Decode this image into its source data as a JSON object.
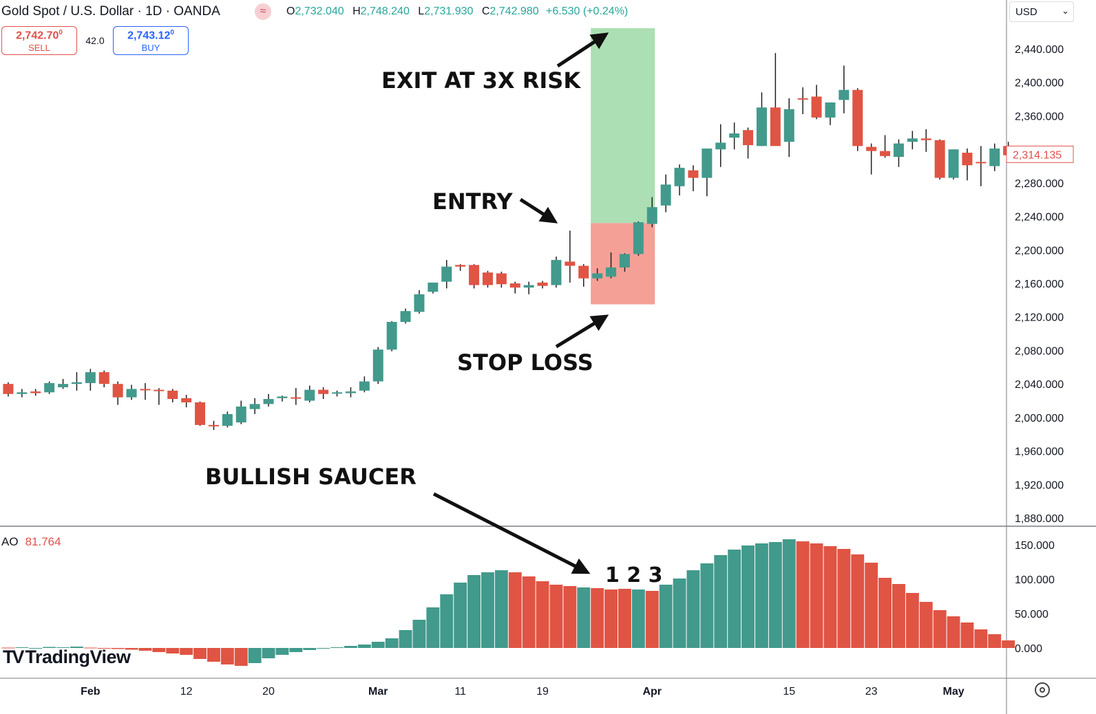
{
  "header": {
    "symbol": "Gold Spot / U.S. Dollar · 1D · OANDA",
    "feed_icon": "approx-icon",
    "ohlc": {
      "o_label": "O",
      "o": "2,732.040",
      "h_label": "H",
      "h": "2,748.240",
      "l_label": "L",
      "l": "2,731.930",
      "c_label": "C",
      "c": "2,742.980",
      "change": "+6.530 (+0.24%)"
    }
  },
  "trade": {
    "sell_price": "2,742.70",
    "sell_price_sup": "0",
    "sell_label": "SELL",
    "spread": "42.0",
    "buy_price": "2,743.12",
    "buy_price_sup": "0",
    "buy_label": "BUY"
  },
  "currency": "USD",
  "ao": {
    "label": "AO",
    "value": "81.764"
  },
  "logo": "TradingView",
  "colors": {
    "up": "#429a8c",
    "down": "#e05444",
    "profit_zone": "#acdfb4",
    "loss_zone": "#f5a097"
  },
  "chart_data": [
    {
      "type": "candlestick",
      "ylim": [
        1880,
        2440
      ],
      "yticks": [
        "2,440.000",
        "2,400.000",
        "2,360.000",
        "2,320.000",
        "2,280.000",
        "2,240.000",
        "2,200.000",
        "2,160.000",
        "2,120.000",
        "2,080.000",
        "2,040.000",
        "2,000.000",
        "1,960.000",
        "1,920.000",
        "1,880.000"
      ],
      "ytick_values": [
        2440,
        2400,
        2360,
        2320,
        2280,
        2240,
        2200,
        2160,
        2120,
        2080,
        2040,
        2000,
        1960,
        1920,
        1880
      ],
      "current_price_label": "2,314.135",
      "current_price": 2314.135,
      "xticks": [
        {
          "label": "Feb",
          "index": 6
        },
        {
          "label": "12",
          "index": 13
        },
        {
          "label": "20",
          "index": 19
        },
        {
          "label": "Mar",
          "index": 27
        },
        {
          "label": "11",
          "index": 33
        },
        {
          "label": "19",
          "index": 39
        },
        {
          "label": "Apr",
          "index": 47
        },
        {
          "label": "15",
          "index": 57
        },
        {
          "label": "23",
          "index": 63
        },
        {
          "label": "May",
          "index": 69
        }
      ],
      "candles": [
        [
          2040,
          2042,
          2025,
          2028
        ],
        [
          2028,
          2034,
          2024,
          2030
        ],
        [
          2031,
          2034,
          2026,
          2029
        ],
        [
          2030,
          2043,
          2028,
          2041
        ],
        [
          2036,
          2046,
          2034,
          2040
        ],
        [
          2040,
          2054,
          2032,
          2042
        ],
        [
          2041,
          2058,
          2032,
          2054
        ],
        [
          2054,
          2056,
          2036,
          2040
        ],
        [
          2040,
          2043,
          2015,
          2024
        ],
        [
          2024,
          2039,
          2021,
          2034
        ],
        [
          2034,
          2041,
          2021,
          2033
        ],
        [
          2033,
          2035,
          2015,
          2032
        ],
        [
          2032,
          2034,
          2018,
          2022
        ],
        [
          2023,
          2027,
          2012,
          2018
        ],
        [
          2018,
          2019,
          1990,
          1991
        ],
        [
          1991,
          1996,
          1985,
          1990
        ],
        [
          1990,
          2007,
          1988,
          2004
        ],
        [
          1994,
          2020,
          1992,
          2013
        ],
        [
          2010,
          2023,
          2004,
          2016
        ],
        [
          2016,
          2028,
          2013,
          2022
        ],
        [
          2023,
          2026,
          2019,
          2025
        ],
        [
          2024,
          2035,
          2015,
          2023
        ],
        [
          2020,
          2038,
          2018,
          2033
        ],
        [
          2033,
          2036,
          2022,
          2028
        ],
        [
          2029,
          2032,
          2025,
          2030
        ],
        [
          2029,
          2036,
          2024,
          2031
        ],
        [
          2032,
          2049,
          2030,
          2043
        ],
        [
          2043,
          2084,
          2040,
          2081
        ],
        [
          2081,
          2115,
          2079,
          2114
        ],
        [
          2114,
          2130,
          2112,
          2127
        ],
        [
          2126,
          2152,
          2124,
          2147
        ],
        [
          2150,
          2160,
          2148,
          2161
        ],
        [
          2162,
          2188,
          2154,
          2180
        ],
        [
          2182,
          2183,
          2175,
          2180
        ],
        [
          2182,
          2183,
          2154,
          2158
        ],
        [
          2173,
          2175,
          2155,
          2158
        ],
        [
          2172,
          2174,
          2155,
          2159
        ],
        [
          2160,
          2162,
          2148,
          2155
        ],
        [
          2155,
          2162,
          2147,
          2158
        ],
        [
          2161,
          2163,
          2154,
          2157
        ],
        [
          2158,
          2192,
          2155,
          2188
        ],
        [
          2186,
          2223,
          2161,
          2181
        ],
        [
          2181,
          2183,
          2156,
          2166
        ],
        [
          2166,
          2178,
          2163,
          2172
        ],
        [
          2168,
          2197,
          2166,
          2179
        ],
        [
          2179,
          2196,
          2174,
          2195
        ],
        [
          2195,
          2234,
          2193,
          2233
        ],
        [
          2231,
          2263,
          2227,
          2251
        ],
        [
          2253,
          2290,
          2245,
          2278
        ],
        [
          2276,
          2302,
          2265,
          2298
        ],
        [
          2295,
          2301,
          2270,
          2286
        ],
        [
          2286,
          2320,
          2264,
          2321
        ],
        [
          2320,
          2350,
          2299,
          2328
        ],
        [
          2334,
          2352,
          2320,
          2339
        ],
        [
          2343,
          2346,
          2309,
          2325
        ],
        [
          2324,
          2388,
          2324,
          2370
        ],
        [
          2370,
          2435,
          2327,
          2324
        ],
        [
          2329,
          2381,
          2311,
          2368
        ],
        [
          2381,
          2394,
          2362,
          2380
        ],
        [
          2383,
          2397,
          2356,
          2358
        ],
        [
          2358,
          2376,
          2349,
          2376
        ],
        [
          2379,
          2420,
          2363,
          2391
        ],
        [
          2391,
          2393,
          2318,
          2324
        ],
        [
          2323,
          2327,
          2290,
          2318
        ],
        [
          2318,
          2337,
          2310,
          2312
        ],
        [
          2311,
          2332,
          2299,
          2327
        ],
        [
          2329,
          2342,
          2320,
          2333
        ],
        [
          2333,
          2344,
          2317,
          2331
        ],
        [
          2331,
          2332,
          2284,
          2286
        ],
        [
          2286,
          2317,
          2284,
          2320
        ],
        [
          2316,
          2321,
          2283,
          2301
        ],
        [
          2305,
          2324,
          2276,
          2304
        ],
        [
          2300,
          2327,
          2294,
          2321
        ],
        [
          2324,
          2329,
          2312,
          2313
        ]
      ]
    },
    {
      "type": "bar",
      "name": "AO",
      "ylim": [
        -25,
        165
      ],
      "yticks": [
        "150.000",
        "100.000",
        "50.000",
        "0.000"
      ],
      "ytick_values": [
        150,
        100,
        50,
        0
      ],
      "values": [
        0.5,
        1,
        0,
        1.5,
        1,
        2,
        0.5,
        0,
        -1.5,
        -2.5,
        -4,
        -6,
        -8,
        -10,
        -16,
        -20,
        -24,
        -26,
        -22,
        -15,
        -10,
        -6,
        -3,
        -1,
        1,
        3,
        5,
        9,
        14,
        26,
        41,
        59,
        78,
        95,
        106,
        110,
        113,
        110,
        104,
        97,
        92,
        90,
        88,
        87,
        85,
        86,
        85,
        83,
        92,
        101,
        113,
        123,
        135,
        143,
        149,
        152,
        154,
        158,
        155,
        152,
        148,
        144,
        136,
        124,
        102,
        93,
        80,
        67,
        55,
        46,
        37,
        27,
        20,
        11
      ],
      "colors": [
        "down",
        "up",
        "up",
        "up",
        "up",
        "up",
        "down",
        "down",
        "down",
        "down",
        "down",
        "down",
        "down",
        "down",
        "down",
        "down",
        "down",
        "down",
        "up",
        "up",
        "up",
        "up",
        "up",
        "up",
        "up",
        "up",
        "up",
        "up",
        "up",
        "up",
        "up",
        "up",
        "up",
        "up",
        "up",
        "up",
        "up",
        "down",
        "down",
        "down",
        "down",
        "down",
        "up",
        "down",
        "down",
        "down",
        "up",
        "down",
        "up",
        "up",
        "up",
        "up",
        "up",
        "up",
        "up",
        "up",
        "up",
        "up",
        "down",
        "down",
        "down",
        "down",
        "down",
        "down",
        "down",
        "down",
        "down",
        "down",
        "down",
        "down",
        "down",
        "down",
        "down",
        "down"
      ]
    }
  ],
  "annotations": {
    "exit": "EXIT AT 3X RISK",
    "entry": "ENTRY",
    "stop": "STOP LOSS",
    "saucer": "BULLISH SAUCER",
    "bars_label": "1 2 3"
  },
  "position": {
    "entry_price": 2232,
    "target_price": 2463,
    "stop_price": 2135,
    "start_index": 43,
    "end_index": 47
  }
}
